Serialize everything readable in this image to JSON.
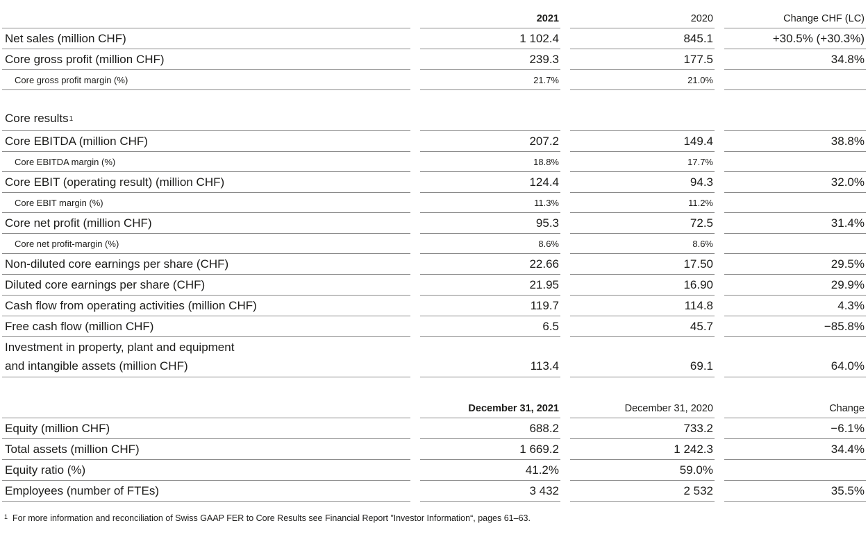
{
  "colors": {
    "background": "#ffffff",
    "text": "#1c1c1a",
    "hairline": "#8a8a8a"
  },
  "section1": {
    "columns": {
      "label": "",
      "y2021": "2021",
      "y2020": "2020",
      "change": "Change CHF (LC)"
    },
    "rows": [
      {
        "type": "main",
        "label": "Net sales (million CHF)",
        "v1": "1 102.4",
        "v2": "845.1",
        "chg": "+30.5% (+30.3%)"
      },
      {
        "type": "main",
        "label": "Core gross profit (million CHF)",
        "v1": "239.3",
        "v2": "177.5",
        "chg": "34.8%"
      },
      {
        "type": "sub",
        "label": "Core gross profit margin (%)",
        "v1": "21.7%",
        "v2": "21.0%",
        "chg": ""
      },
      {
        "type": "section",
        "label": "Core results",
        "footnote_ref": "1",
        "v1": "",
        "v2": "",
        "chg": ""
      },
      {
        "type": "main",
        "label": "Core EBITDA (million CHF)",
        "v1": "207.2",
        "v2": "149.4",
        "chg": "38.8%"
      },
      {
        "type": "sub",
        "label": "Core EBITDA margin (%)",
        "v1": "18.8%",
        "v2": "17.7%",
        "chg": ""
      },
      {
        "type": "main",
        "label": "Core EBIT (operating result) (million CHF)",
        "v1": "124.4",
        "v2": "94.3",
        "chg": "32.0%"
      },
      {
        "type": "sub",
        "label": "Core EBIT margin (%)",
        "v1": "11.3%",
        "v2": "11.2%",
        "chg": ""
      },
      {
        "type": "main",
        "label": "Core net profit (million CHF)",
        "v1": "95.3",
        "v2": "72.5",
        "chg": "31.4%"
      },
      {
        "type": "sub",
        "label": "Core net profit-margin (%)",
        "v1": "8.6%",
        "v2": "8.6%",
        "chg": ""
      },
      {
        "type": "main",
        "label": "Non-diluted core earnings per share (CHF)",
        "v1": "22.66",
        "v2": "17.50",
        "chg": "29.5%"
      },
      {
        "type": "main",
        "label": "Diluted core earnings per share (CHF)",
        "v1": "21.95",
        "v2": "16.90",
        "chg": "29.9%"
      },
      {
        "type": "main",
        "label": "Cash flow from operating activities (million CHF)",
        "v1": "119.7",
        "v2": "114.8",
        "chg": "4.3%"
      },
      {
        "type": "main",
        "label": "Free cash flow (million CHF)",
        "v1": "6.5",
        "v2": "45.7",
        "chg": "−85.8%"
      },
      {
        "type": "tall",
        "label": "Investment in property, plant and equipment and intangible assets (million CHF)",
        "label_lines": [
          "Investment in property, plant and equipment",
          "and intangible assets (million CHF)"
        ],
        "v1": "113.4",
        "v2": "69.1",
        "chg": "64.0%"
      }
    ]
  },
  "section2": {
    "columns": {
      "label": "",
      "y2021": "December 31, 2021",
      "y2020": "December 31, 2020",
      "change": "Change"
    },
    "rows": [
      {
        "type": "main",
        "label": "Equity (million CHF)",
        "v1": "688.2",
        "v2": "733.2",
        "chg": "−6.1%"
      },
      {
        "type": "main",
        "label": "Total assets (million CHF)",
        "v1": "1 669.2",
        "v2": "1 242.3",
        "chg": "34.4%"
      },
      {
        "type": "main",
        "label": "Equity ratio (%)",
        "v1": "41.2%",
        "v2": "59.0%",
        "chg": ""
      },
      {
        "type": "main",
        "label": "Employees (number of FTEs)",
        "v1": "3 432",
        "v2": "2 532",
        "chg": "35.5%"
      }
    ]
  },
  "footnote": {
    "marker": "1",
    "text": "For more information and reconciliation of Swiss GAAP FER to Core Results see Financial Report ”Investor Information“, pages 61–63."
  }
}
